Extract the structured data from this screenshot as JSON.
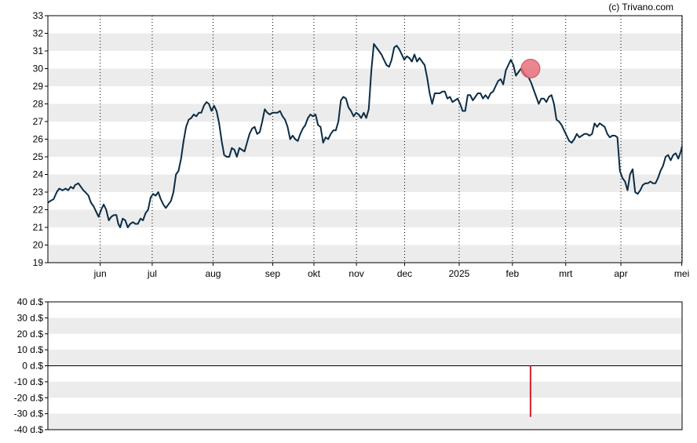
{
  "copyright": "(c) Trivano.com",
  "chart_data": [
    {
      "type": "line",
      "name": "price",
      "ylim": [
        19,
        33
      ],
      "y_ticks": [
        "19",
        "20",
        "21",
        "22",
        "23",
        "24",
        "25",
        "26",
        "27",
        "28",
        "29",
        "30",
        "31",
        "32",
        "33"
      ],
      "x_tick_labels": [
        "jun",
        "jul",
        "aug",
        "sep",
        "okt",
        "nov",
        "dec",
        "2025",
        "feb",
        "mrt",
        "apr",
        "mei"
      ],
      "x_tick_positions": [
        0.0825,
        0.1645,
        0.2605,
        0.3545,
        0.4195,
        0.4865,
        0.5625,
        0.6485,
        0.7325,
        0.8165,
        0.9035,
        0.9995
      ],
      "grid": "horizontal alternating bands, dotted vertical month lines",
      "line_color": "#0b2c45",
      "marker": {
        "x": 0.761,
        "y": 30.0,
        "color": "#e8707a"
      },
      "series": [
        {
          "x": [
            0.0,
            0.004,
            0.009,
            0.014,
            0.018,
            0.023,
            0.028,
            0.032,
            0.036,
            0.04,
            0.043,
            0.048,
            0.052,
            0.056,
            0.059,
            0.064,
            0.068,
            0.072,
            0.076,
            0.08,
            0.084,
            0.088,
            0.092,
            0.096,
            0.1,
            0.104,
            0.108,
            0.111,
            0.114,
            0.118,
            0.122,
            0.126,
            0.13,
            0.134,
            0.138,
            0.142,
            0.146,
            0.15,
            0.154,
            0.158,
            0.162,
            0.166,
            0.17,
            0.174,
            0.178,
            0.182,
            0.186,
            0.19,
            0.194,
            0.198,
            0.202,
            0.206,
            0.21,
            0.214,
            0.218,
            0.222,
            0.226,
            0.23,
            0.234,
            0.238,
            0.242,
            0.246,
            0.25,
            0.254,
            0.258,
            0.262,
            0.266,
            0.27,
            0.274,
            0.278,
            0.282,
            0.286,
            0.29,
            0.294,
            0.298,
            0.302,
            0.306,
            0.31,
            0.314,
            0.318,
            0.322,
            0.326,
            0.33,
            0.334,
            0.338,
            0.342,
            0.346,
            0.35,
            0.354,
            0.358,
            0.362,
            0.366,
            0.37,
            0.374,
            0.378,
            0.382,
            0.386,
            0.39,
            0.394,
            0.398,
            0.402,
            0.406,
            0.41,
            0.414,
            0.418,
            0.422,
            0.426,
            0.43,
            0.434,
            0.438,
            0.442,
            0.446,
            0.45,
            0.454,
            0.458,
            0.462,
            0.466,
            0.47,
            0.474,
            0.478,
            0.482,
            0.486,
            0.49,
            0.494,
            0.498,
            0.502,
            0.506,
            0.51,
            0.514,
            0.518,
            0.522,
            0.526,
            0.53,
            0.534,
            0.538,
            0.542,
            0.546,
            0.55,
            0.554,
            0.558,
            0.562,
            0.566,
            0.57,
            0.574,
            0.578,
            0.582,
            0.586,
            0.59,
            0.594,
            0.598,
            0.602,
            0.606,
            0.61,
            0.614,
            0.618,
            0.622,
            0.626,
            0.63,
            0.634,
            0.638,
            0.642,
            0.646,
            0.65,
            0.654,
            0.658,
            0.662,
            0.666,
            0.67,
            0.674,
            0.678,
            0.682,
            0.686,
            0.69,
            0.694,
            0.698,
            0.702,
            0.706,
            0.71,
            0.714,
            0.718,
            0.722,
            0.726,
            0.73,
            0.734,
            0.738,
            0.742,
            0.746,
            0.75,
            0.754,
            0.758,
            0.762,
            0.766,
            0.77,
            0.774,
            0.778,
            0.782,
            0.786,
            0.79,
            0.794,
            0.798,
            0.802,
            0.806,
            0.81,
            0.814,
            0.818,
            0.822,
            0.826,
            0.83,
            0.834,
            0.838,
            0.842,
            0.846,
            0.85,
            0.854,
            0.858,
            0.862,
            0.866,
            0.87,
            0.874,
            0.878,
            0.882,
            0.886,
            0.89,
            0.894,
            0.898,
            0.902,
            0.906,
            0.91,
            0.914,
            0.918,
            0.922,
            0.926,
            0.93,
            0.934,
            0.938,
            0.942,
            0.946,
            0.95,
            0.954,
            0.958,
            0.962,
            0.966,
            0.97,
            0.974,
            0.978,
            0.982,
            0.986,
            0.99,
            0.994,
            0.998,
            1.0
          ],
          "y": [
            22.4,
            22.5,
            22.6,
            23.0,
            23.2,
            23.1,
            23.2,
            23.1,
            23.3,
            23.2,
            23.4,
            23.5,
            23.3,
            23.1,
            23.0,
            22.8,
            22.4,
            22.2,
            21.9,
            21.6,
            22.0,
            22.3,
            22.0,
            21.4,
            21.6,
            21.7,
            21.7,
            21.2,
            21.0,
            21.5,
            21.4,
            21.0,
            21.2,
            21.3,
            21.2,
            21.2,
            21.5,
            21.4,
            21.8,
            22.0,
            22.7,
            22.9,
            22.8,
            23.0,
            22.6,
            22.3,
            22.1,
            22.3,
            22.5,
            23.0,
            24.0,
            24.2,
            24.9,
            25.9,
            26.7,
            27.1,
            27.2,
            27.4,
            27.3,
            27.5,
            27.5,
            27.9,
            28.1,
            28.0,
            27.6,
            27.9,
            27.6,
            26.9,
            25.9,
            25.1,
            25.0,
            25.0,
            25.5,
            25.4,
            25.0,
            25.5,
            25.4,
            25.3,
            25.8,
            26.3,
            26.6,
            26.7,
            26.3,
            26.4,
            27.0,
            27.7,
            27.5,
            27.4,
            27.5,
            27.5,
            27.5,
            27.6,
            27.3,
            27.1,
            26.7,
            26.0,
            26.2,
            26.0,
            25.9,
            26.3,
            26.6,
            26.8,
            27.2,
            27.4,
            27.3,
            27.4,
            26.8,
            26.7,
            25.8,
            26.1,
            26.0,
            26.3,
            26.5,
            26.5,
            27.0,
            28.2,
            28.4,
            28.3,
            27.8,
            27.6,
            27.3,
            27.5,
            27.4,
            27.2,
            27.5,
            27.2,
            27.7,
            29.9,
            31.4,
            31.2,
            31.0,
            30.8,
            30.5,
            30.2,
            30.1,
            30.5,
            31.2,
            31.3,
            31.1,
            30.8,
            30.5,
            30.7,
            30.6,
            30.4,
            30.8,
            30.4,
            30.6,
            30.4,
            30.2,
            29.5,
            28.6,
            28.0,
            28.6,
            28.6,
            28.6,
            28.7,
            28.7,
            28.3,
            28.4,
            28.1,
            28.2,
            28.3,
            28.0,
            27.6,
            27.6,
            28.5,
            28.5,
            28.2,
            28.4,
            28.6,
            28.6,
            28.3,
            28.5,
            28.3,
            28.6,
            28.7,
            29.0,
            29.3,
            29.4,
            29.1,
            29.9,
            30.2,
            30.5,
            30.2,
            29.6,
            29.8,
            30.0,
            29.8,
            29.6,
            29.5,
            29.2,
            28.8,
            28.4,
            28.0,
            28.3,
            28.3,
            28.1,
            28.4,
            28.5,
            28.0,
            27.1,
            27.0,
            26.8,
            26.5,
            26.2,
            25.9,
            25.8,
            26.0,
            26.3,
            26.1,
            26.2,
            26.3,
            26.3,
            26.2,
            26.3,
            26.9,
            26.7,
            26.9,
            26.8,
            26.7,
            26.3,
            26.1,
            26.2,
            26.2,
            26.1,
            24.2,
            23.8,
            23.6,
            23.1,
            24.0,
            24.3,
            23.0,
            22.9,
            23.1,
            23.4,
            23.5,
            23.5,
            23.6,
            23.5,
            23.5,
            23.8,
            24.2,
            24.5,
            25.0,
            25.1,
            24.8,
            25.1,
            25.2,
            24.9,
            25.3,
            25.6
          ]
        }
      ]
    },
    {
      "type": "bar",
      "name": "dividend",
      "ylim": [
        -40,
        40
      ],
      "y_ticks": [
        "40 d.$",
        "30 d.$",
        "20 d.$",
        "10 d.$",
        "0 d.$",
        "-10 d.$",
        "-20 d.$",
        "-30 d.$",
        "-40 d.$"
      ],
      "grid": "horizontal alternating bands",
      "bars": [
        {
          "x": 0.761,
          "value": -32,
          "color": "#d9202b"
        }
      ]
    }
  ]
}
